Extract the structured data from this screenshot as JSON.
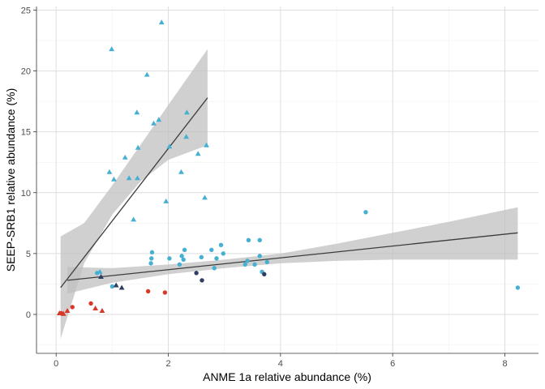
{
  "chart_data": {
    "type": "scatter",
    "xlabel": "ANME 1a relative abundance (%)",
    "ylabel": "SEEP-SRB1 relative abundance (%)",
    "xlim": [
      -0.35,
      8.6
    ],
    "ylim": [
      -3.2,
      25.3
    ],
    "x_ticks": [
      0,
      2,
      4,
      6,
      8
    ],
    "y_ticks": [
      0,
      5,
      10,
      15,
      20,
      25
    ],
    "grid": true,
    "legend": "none",
    "colors": {
      "teal": "#45b0d2",
      "navy": "#2e3d62",
      "red": "#d73a2a",
      "line": "#3c3c3c",
      "band": "#c0c0c0",
      "grid_major": "#dedede",
      "grid_minor": "#efefef",
      "axis": "#333333"
    },
    "series": [
      {
        "marker": "triangle",
        "color": "teal",
        "points": [
          [
            1.88,
            24.0
          ],
          [
            0.99,
            21.8
          ],
          [
            1.62,
            19.7
          ],
          [
            1.83,
            16.0
          ],
          [
            1.74,
            15.7
          ],
          [
            1.44,
            16.6
          ],
          [
            2.33,
            16.6
          ],
          [
            1.46,
            13.7
          ],
          [
            2.68,
            13.9
          ],
          [
            2.02,
            13.8
          ],
          [
            2.53,
            13.2
          ],
          [
            2.32,
            14.6
          ],
          [
            1.23,
            12.9
          ],
          [
            0.95,
            11.7
          ],
          [
            1.3,
            11.2
          ],
          [
            1.03,
            11.1
          ],
          [
            1.45,
            11.2
          ],
          [
            2.23,
            11.7
          ],
          [
            1.96,
            9.3
          ],
          [
            2.65,
            9.6
          ],
          [
            1.38,
            7.8
          ],
          [
            0.78,
            3.5
          ]
        ]
      },
      {
        "marker": "circle",
        "color": "teal",
        "points": [
          [
            5.52,
            8.4
          ],
          [
            8.23,
            2.2
          ],
          [
            3.43,
            6.1
          ],
          [
            3.63,
            6.1
          ],
          [
            2.94,
            5.7
          ],
          [
            2.77,
            5.3
          ],
          [
            2.98,
            5.0
          ],
          [
            2.29,
            5.3
          ],
          [
            2.24,
            4.8
          ],
          [
            2.27,
            4.5
          ],
          [
            1.71,
            5.1
          ],
          [
            1.7,
            4.6
          ],
          [
            1.69,
            4.2
          ],
          [
            2.02,
            4.6
          ],
          [
            2.2,
            4.1
          ],
          [
            2.59,
            4.7
          ],
          [
            2.86,
            4.6
          ],
          [
            3.37,
            4.1
          ],
          [
            3.41,
            4.4
          ],
          [
            3.54,
            4.1
          ],
          [
            3.63,
            4.8
          ],
          [
            3.76,
            4.3
          ],
          [
            3.67,
            3.5
          ],
          [
            2.82,
            3.8
          ],
          [
            1.0,
            2.3
          ],
          [
            0.73,
            3.4
          ]
        ]
      },
      {
        "marker": "circle",
        "color": "navy",
        "points": [
          [
            2.5,
            3.4
          ],
          [
            2.6,
            2.8
          ],
          [
            3.71,
            3.3
          ]
        ]
      },
      {
        "marker": "triangle",
        "color": "navy",
        "points": [
          [
            0.8,
            3.1
          ],
          [
            1.07,
            2.4
          ],
          [
            1.17,
            2.2
          ]
        ]
      },
      {
        "marker": "circle",
        "color": "red",
        "points": [
          [
            1.64,
            1.9
          ],
          [
            1.94,
            1.8
          ],
          [
            0.62,
            0.9
          ],
          [
            0.29,
            0.6
          ],
          [
            0.09,
            0.1
          ]
        ]
      },
      {
        "marker": "triangle",
        "color": "red",
        "points": [
          [
            0.7,
            0.5
          ],
          [
            0.82,
            0.3
          ],
          [
            0.2,
            0.3
          ],
          [
            0.06,
            0.1
          ],
          [
            0.13,
            0.05
          ]
        ]
      }
    ],
    "fits": [
      {
        "line": [
          [
            0.08,
            2.2
          ],
          [
            2.7,
            17.8
          ]
        ],
        "band": {
          "x": [
            0.08,
            0.5,
            1.0,
            1.5,
            2.0,
            2.7
          ],
          "lower": [
            -2.0,
            4.2,
            8.2,
            10.9,
            12.7,
            13.9
          ],
          "upper": [
            6.4,
            7.5,
            10.6,
            13.9,
            17.2,
            21.8
          ]
        }
      },
      {
        "line": [
          [
            0.2,
            2.8
          ],
          [
            8.23,
            6.7
          ]
        ],
        "band": {
          "x": [
            0.2,
            1.0,
            2.0,
            3.0,
            4.0,
            5.0,
            6.0,
            7.0,
            8.23
          ],
          "lower": [
            1.7,
            2.6,
            3.3,
            3.8,
            4.2,
            4.4,
            4.5,
            4.5,
            4.5
          ],
          "upper": [
            3.9,
            3.8,
            4.1,
            4.5,
            5.0,
            5.8,
            6.7,
            7.6,
            8.8
          ]
        }
      }
    ]
  }
}
